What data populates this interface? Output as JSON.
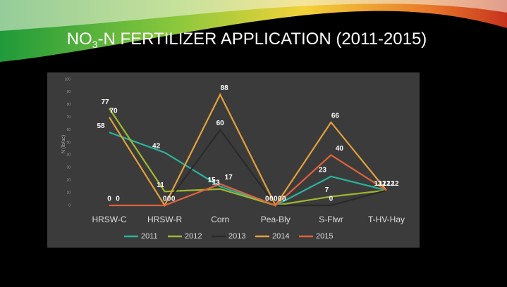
{
  "chart_data": {
    "type": "line",
    "title_parts": [
      "NO",
      "3",
      "-N FERTILIZER APPLICATION (2011-2015)"
    ],
    "y_label": "N (lb/ac)",
    "categories": [
      "HRSW-C",
      "HRSW-R",
      "Corn",
      "Pea-Bly",
      "S-Flwr",
      "T-HV-Hay"
    ],
    "series": [
      {
        "name": "2011",
        "color": "#2bb39c",
        "values": [
          58,
          42,
          15,
          0,
          23,
          12
        ]
      },
      {
        "name": "2012",
        "color": "#9fb82e",
        "values": [
          77,
          11,
          13,
          0,
          7,
          12
        ]
      },
      {
        "name": "2013",
        "color": "#2a2a2a",
        "values": [
          0,
          0,
          60,
          0,
          0,
          12
        ]
      },
      {
        "name": "2014",
        "color": "#e3a13a",
        "values": [
          70,
          0,
          88,
          0,
          66,
          12
        ]
      },
      {
        "name": "2015",
        "color": "#e0613c",
        "values": [
          0,
          0,
          17,
          0,
          40,
          12
        ]
      }
    ],
    "ylim": [
      0,
      100
    ],
    "yticks": [
      0,
      10,
      20,
      30,
      40,
      50,
      60,
      70,
      80,
      90,
      100
    ],
    "legend": "bottom"
  }
}
